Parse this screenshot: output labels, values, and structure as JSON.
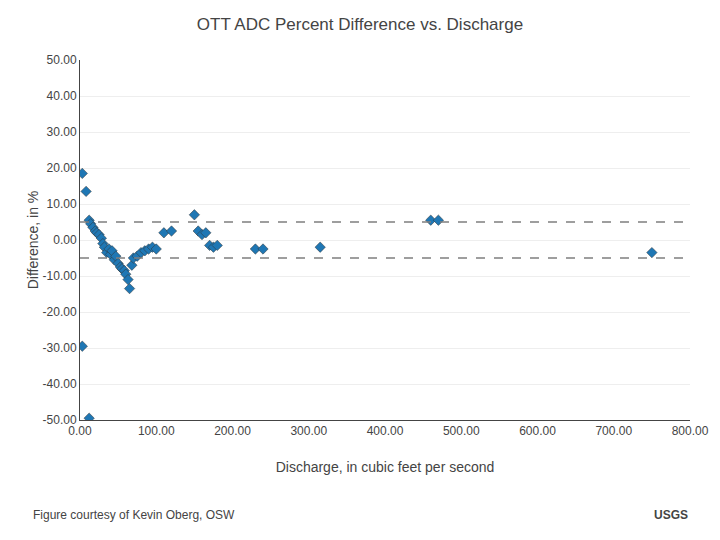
{
  "chart_data": {
    "type": "scatter",
    "title": "OTT ADC Percent Difference vs. Discharge",
    "xlabel": "Discharge, in cubic feet per second",
    "ylabel": "Difference, in %",
    "annotations": [
      "Figure courtesy of Kevin Oberg, OSW",
      "USGS"
    ],
    "series": [
      {
        "type": "scatter",
        "marker": "diamond",
        "x": [
          3,
          8,
          12,
          14,
          17,
          20,
          22,
          25,
          28,
          30,
          32,
          35,
          38,
          40,
          42,
          45,
          47,
          50,
          53,
          55,
          58,
          60,
          63,
          65,
          68,
          70,
          75,
          80,
          85,
          90,
          95,
          100,
          110,
          120,
          150,
          155,
          160,
          165,
          170,
          175,
          180,
          230,
          240,
          315,
          460,
          470,
          750,
          3,
          12
        ],
        "values": [
          18.5,
          13.5,
          5.5,
          4.5,
          3.5,
          2.5,
          2.0,
          1.5,
          0.5,
          -1.0,
          -2.0,
          -3.5,
          -2.5,
          -4.0,
          -3.0,
          -5.5,
          -4.5,
          -6.5,
          -7.5,
          -8.0,
          -8.5,
          -9.5,
          -11.0,
          -13.5,
          -7.0,
          -5.0,
          -4.5,
          -3.5,
          -3.0,
          -2.5,
          -2.0,
          -2.5,
          2.0,
          2.5,
          7.0,
          2.5,
          1.5,
          2.0,
          -1.5,
          -2.0,
          -1.5,
          -2.5,
          -2.5,
          -2.0,
          5.5,
          5.5,
          -3.5,
          -29.5,
          -49.5
        ]
      },
      {
        "type": "hline",
        "line_style": "dashed",
        "values": [
          5,
          -5
        ]
      }
    ],
    "xlim": [
      0,
      800
    ],
    "ylim": [
      -50,
      50
    ],
    "xticks": [
      {
        "value": 0,
        "label": "0.00"
      },
      {
        "value": 100,
        "label": "100.00"
      },
      {
        "value": 200,
        "label": "200.00"
      },
      {
        "value": 300,
        "label": "300.00"
      },
      {
        "value": 400,
        "label": "400.00"
      },
      {
        "value": 500,
        "label": "500.00"
      },
      {
        "value": 600,
        "label": "600.00"
      },
      {
        "value": 700,
        "label": "700.00"
      },
      {
        "value": 800,
        "label": "800.00"
      }
    ],
    "yticks": [
      {
        "value": -50,
        "label": "-50.00"
      },
      {
        "value": -40,
        "label": "-40.00"
      },
      {
        "value": -30,
        "label": "-30.00"
      },
      {
        "value": -20,
        "label": "-20.00"
      },
      {
        "value": -10,
        "label": "-10.00"
      },
      {
        "value": 0,
        "label": "0.00"
      },
      {
        "value": 10,
        "label": "10.00"
      },
      {
        "value": 20,
        "label": "20.00"
      },
      {
        "value": 30,
        "label": "30.00"
      },
      {
        "value": 40,
        "label": "40.00"
      },
      {
        "value": 50,
        "label": "50.00"
      }
    ],
    "grid": "y"
  }
}
